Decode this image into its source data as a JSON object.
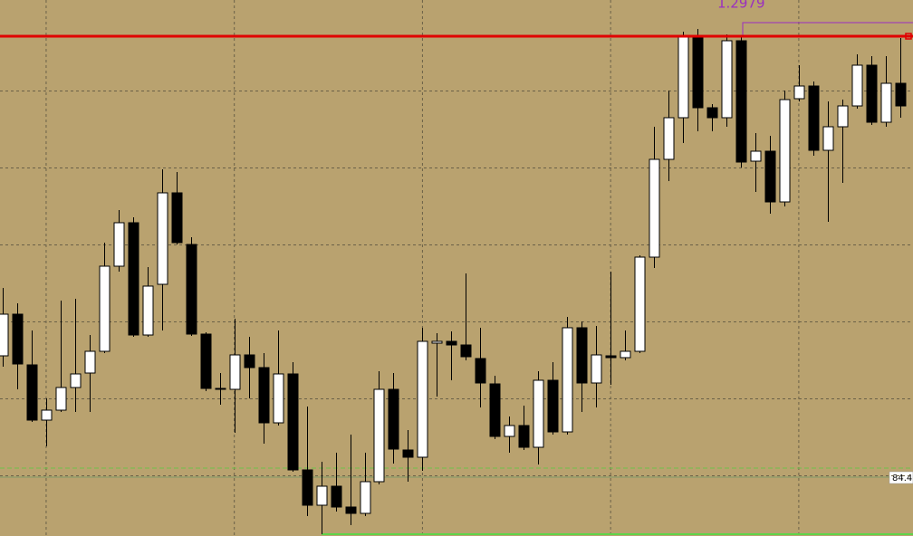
{
  "chart_data": {
    "type": "candlestick",
    "level": 1.2979,
    "level_color": "#e00000",
    "label_color": "#9a2fc0",
    "marker_label": "84.4",
    "up_color": "#ffffff",
    "down_color": "#000000",
    "background": "#b9a26f",
    "ylim": [
      1.2427,
      1.3019
    ],
    "yticks": [
      1.2919,
      1.2834,
      1.2749,
      1.2664,
      1.2579,
      1.2494
    ],
    "grid": true,
    "open": [
      1.2626,
      1.2672,
      1.2616,
      1.2555,
      1.2566,
      1.2591,
      1.2607,
      1.2631,
      1.2725,
      1.2773,
      1.2649,
      1.2705,
      1.2806,
      1.2749,
      1.265,
      1.259,
      1.2589,
      1.2627,
      1.2613,
      1.2552,
      1.2606,
      1.25,
      1.2461,
      1.2482,
      1.2459,
      1.2452,
      1.2487,
      1.2589,
      1.2522,
      1.2514,
      1.264,
      1.2642,
      1.2638,
      1.2623,
      1.2595,
      1.2537,
      1.2549,
      1.2525,
      1.2599,
      1.2542,
      1.2657,
      1.2596,
      1.2626,
      1.2624,
      1.2631,
      1.2735,
      1.2843,
      1.2889,
      1.2978,
      1.29,
      1.2889,
      1.2974,
      1.2841,
      1.2852,
      1.2796,
      1.291,
      1.2924,
      1.2853,
      1.2879,
      1.2902,
      1.2947,
      1.2884,
      1.2927
    ],
    "high": [
      1.2701,
      1.2684,
      1.2654,
      1.2579,
      1.2687,
      1.2689,
      1.2649,
      1.2751,
      1.2787,
      1.2779,
      1.2724,
      1.2832,
      1.2829,
      1.2757,
      1.2652,
      1.2607,
      1.2667,
      1.2647,
      1.2629,
      1.2654,
      1.2619,
      1.257,
      1.2509,
      1.2519,
      1.2539,
      1.2519,
      1.2609,
      1.2607,
      1.2544,
      1.2657,
      1.2651,
      1.2653,
      1.2717,
      1.2657,
      1.2604,
      1.2559,
      1.2571,
      1.2609,
      1.2619,
      1.2669,
      1.2664,
      1.2659,
      1.2719,
      1.2654,
      1.2737,
      1.2879,
      1.2919,
      1.2984,
      1.2987,
      1.2904,
      1.2981,
      1.2979,
      1.2872,
      1.2869,
      1.2919,
      1.2947,
      1.2929,
      1.2907,
      1.2909,
      1.2959,
      1.2957,
      1.2957,
      1.2977
    ],
    "low": [
      1.2614,
      1.2589,
      1.2553,
      1.2526,
      1.2564,
      1.2564,
      1.2564,
      1.2629,
      1.2719,
      1.2647,
      1.2647,
      1.2654,
      1.2749,
      1.2648,
      1.2587,
      1.2572,
      1.2541,
      1.2579,
      1.2529,
      1.2549,
      1.2498,
      1.2449,
      1.2429,
      1.2454,
      1.2439,
      1.2449,
      1.2484,
      1.2507,
      1.2487,
      1.2499,
      1.2581,
      1.2599,
      1.2621,
      1.2569,
      1.2534,
      1.2519,
      1.2522,
      1.2506,
      1.2539,
      1.2539,
      1.2564,
      1.2569,
      1.2594,
      1.2621,
      1.2629,
      1.2723,
      1.2819,
      1.2861,
      1.2874,
      1.2874,
      1.2879,
      1.2834,
      1.2807,
      1.2783,
      1.2791,
      1.2907,
      1.2847,
      1.2774,
      1.2817,
      1.2899,
      1.2881,
      1.2879,
      1.2889
    ],
    "close": [
      1.2672,
      1.2617,
      1.2555,
      1.2566,
      1.2591,
      1.2606,
      1.2631,
      1.2725,
      1.2773,
      1.2649,
      1.2703,
      1.2806,
      1.2751,
      1.265,
      1.259,
      1.2589,
      1.2627,
      1.2613,
      1.2552,
      1.2606,
      1.25,
      1.2461,
      1.2482,
      1.2459,
      1.2452,
      1.2487,
      1.2589,
      1.2523,
      1.2514,
      1.2642,
      1.2642,
      1.2638,
      1.2625,
      1.2596,
      1.2537,
      1.2549,
      1.2525,
      1.2599,
      1.2542,
      1.2657,
      1.2596,
      1.2627,
      1.2624,
      1.2631,
      1.2735,
      1.2843,
      1.2889,
      1.2978,
      1.29,
      1.2889,
      1.2974,
      1.284,
      1.2852,
      1.2796,
      1.2909,
      1.2924,
      1.2853,
      1.2879,
      1.2902,
      1.2947,
      1.2884,
      1.2927,
      1.2902
    ]
  }
}
